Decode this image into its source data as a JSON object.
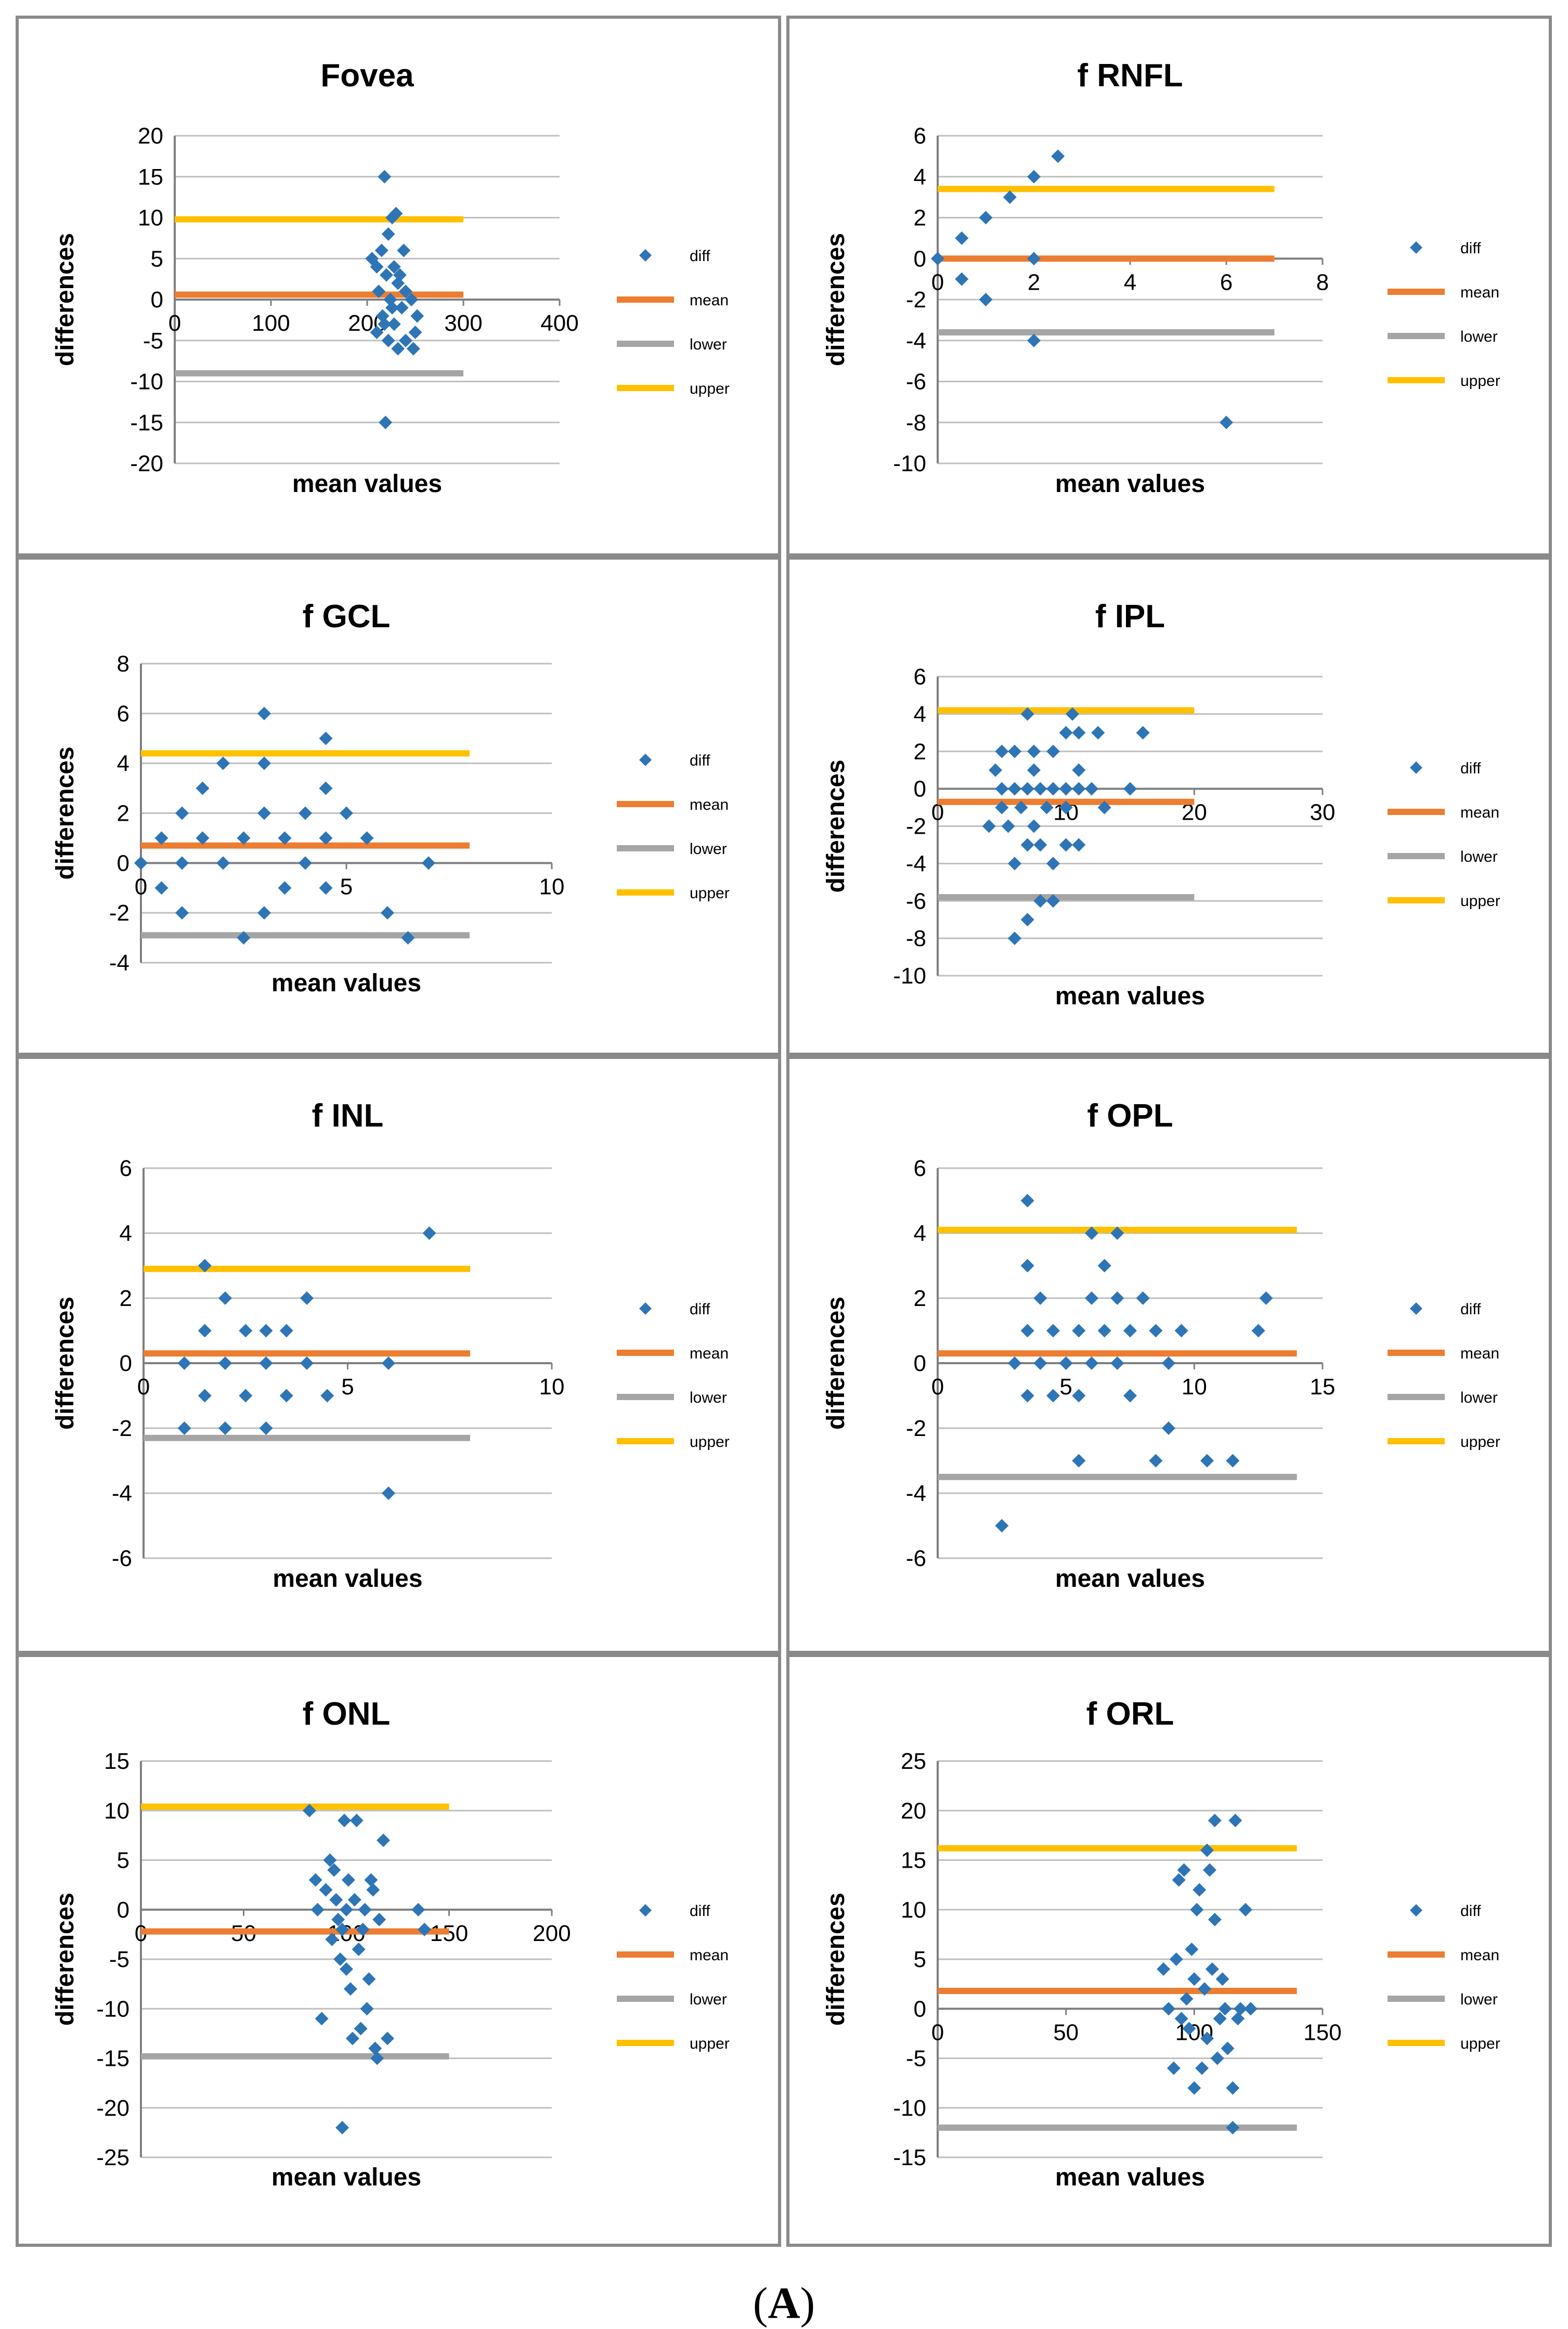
{
  "colors": {
    "diff": "#2E75B6",
    "mean": "#ED7D31",
    "lower": "#A5A5A5",
    "upper": "#FFC000",
    "grid": "#BFBFBF",
    "axis": "#7F7F7F"
  },
  "figure_caption": {
    "open": "(",
    "letter": "A",
    "close": ")"
  },
  "chart_data": [
    {
      "type": "scatter",
      "title": "Fovea",
      "xlabel": "mean values",
      "ylabel": "differences",
      "xlim": [
        0,
        400
      ],
      "ylim": [
        -20,
        20
      ],
      "xticks": [
        "0",
        "100",
        "200",
        "300",
        "400"
      ],
      "yticks": [
        "-20",
        "-15",
        "-10",
        "-5",
        "0",
        "5",
        "10",
        "15",
        "20"
      ],
      "legend": [
        "diff",
        "mean",
        "lower",
        "upper"
      ],
      "lines": {
        "mean": 0.6,
        "lower": -9,
        "upper": 9.8
      },
      "line_x": [
        0,
        300
      ],
      "points": [
        [
          218,
          15
        ],
        [
          230,
          10.5
        ],
        [
          222,
          8
        ],
        [
          226,
          10
        ],
        [
          205,
          5
        ],
        [
          215,
          6
        ],
        [
          238,
          6
        ],
        [
          210,
          4
        ],
        [
          220,
          3
        ],
        [
          228,
          4
        ],
        [
          232,
          2
        ],
        [
          212,
          1
        ],
        [
          224,
          0
        ],
        [
          236,
          -1
        ],
        [
          216,
          -2
        ],
        [
          228,
          -3
        ],
        [
          210,
          -4
        ],
        [
          222,
          -5
        ],
        [
          240,
          -5
        ],
        [
          248,
          -6
        ],
        [
          232,
          -6
        ],
        [
          250,
          -4
        ],
        [
          252,
          -2
        ],
        [
          246,
          0
        ],
        [
          240,
          1
        ],
        [
          226,
          -1
        ],
        [
          234,
          3
        ],
        [
          218,
          -3
        ],
        [
          219,
          -15
        ]
      ]
    },
    {
      "type": "scatter",
      "title": "f RNFL",
      "xlabel": "mean values",
      "ylabel": "differences",
      "xlim": [
        0,
        8
      ],
      "ylim": [
        -10,
        6
      ],
      "xticks": [
        "0",
        "2",
        "4",
        "6",
        "8"
      ],
      "yticks": [
        "-10",
        "-8",
        "-6",
        "-4",
        "-2",
        "0",
        "2",
        "4",
        "6"
      ],
      "legend": [
        "diff",
        "mean",
        "lower",
        "upper"
      ],
      "lines": {
        "mean": 0,
        "lower": -3.6,
        "upper": 3.4
      },
      "line_x": [
        0,
        7
      ],
      "points": [
        [
          0,
          0
        ],
        [
          0.5,
          1
        ],
        [
          0.5,
          -1
        ],
        [
          1,
          2
        ],
        [
          1,
          -2
        ],
        [
          1.5,
          3
        ],
        [
          2,
          4
        ],
        [
          2,
          0
        ],
        [
          2,
          -4
        ],
        [
          2.5,
          5
        ],
        [
          6,
          -8
        ]
      ]
    },
    {
      "type": "scatter",
      "title": "f GCL",
      "xlabel": "mean values",
      "ylabel": "differences",
      "xlim": [
        0,
        10
      ],
      "ylim": [
        -4,
        8
      ],
      "xticks": [
        "0",
        "5",
        "10"
      ],
      "yticks": [
        "-4",
        "-2",
        "0",
        "2",
        "4",
        "6",
        "8"
      ],
      "legend": [
        "diff",
        "mean",
        "lower",
        "upper"
      ],
      "lines": {
        "mean": 0.7,
        "lower": -2.9,
        "upper": 4.4
      },
      "line_x": [
        0,
        8
      ],
      "points": [
        [
          0,
          0
        ],
        [
          0.5,
          1
        ],
        [
          0.5,
          -1
        ],
        [
          1,
          2
        ],
        [
          1,
          0
        ],
        [
          1,
          -2
        ],
        [
          1.5,
          3
        ],
        [
          1.5,
          1
        ],
        [
          2,
          4
        ],
        [
          2,
          0
        ],
        [
          2.5,
          1
        ],
        [
          2.5,
          -3
        ],
        [
          3,
          6
        ],
        [
          3,
          4
        ],
        [
          3,
          2
        ],
        [
          3,
          -2
        ],
        [
          3.5,
          1
        ],
        [
          3.5,
          -1
        ],
        [
          4,
          2
        ],
        [
          4,
          0
        ],
        [
          4.5,
          5
        ],
        [
          4.5,
          3
        ],
        [
          4.5,
          1
        ],
        [
          4.5,
          -1
        ],
        [
          5,
          2
        ],
        [
          5.5,
          1
        ],
        [
          6,
          -2
        ],
        [
          6.5,
          -3
        ],
        [
          7,
          0
        ]
      ]
    },
    {
      "type": "scatter",
      "title": "f IPL",
      "xlabel": "mean values",
      "ylabel": "differences",
      "xlim": [
        0,
        30
      ],
      "ylim": [
        -10,
        6
      ],
      "xticks": [
        "0",
        "10",
        "20",
        "30"
      ],
      "yticks": [
        "-10",
        "-8",
        "-6",
        "-4",
        "-2",
        "0",
        "2",
        "4",
        "6"
      ],
      "legend": [
        "diff",
        "mean",
        "lower",
        "upper"
      ],
      "lines": {
        "mean": -0.7,
        "lower": -5.8,
        "upper": 4.2
      },
      "line_x": [
        0,
        20
      ],
      "points": [
        [
          4,
          -2
        ],
        [
          4.5,
          1
        ],
        [
          5,
          0
        ],
        [
          5,
          -1
        ],
        [
          5,
          2
        ],
        [
          5.5,
          -2
        ],
        [
          6,
          2
        ],
        [
          6,
          0
        ],
        [
          6,
          -4
        ],
        [
          6,
          -8
        ],
        [
          6.5,
          -1
        ],
        [
          7,
          4
        ],
        [
          7,
          0
        ],
        [
          7,
          -3
        ],
        [
          7,
          -7
        ],
        [
          7.5,
          2
        ],
        [
          7.5,
          1
        ],
        [
          7.5,
          -2
        ],
        [
          8,
          0
        ],
        [
          8,
          -3
        ],
        [
          8,
          -6
        ],
        [
          8.5,
          -1
        ],
        [
          9,
          2
        ],
        [
          9,
          0
        ],
        [
          9,
          -4
        ],
        [
          9,
          -6
        ],
        [
          10,
          3
        ],
        [
          10,
          0
        ],
        [
          10,
          -1
        ],
        [
          10,
          -3
        ],
        [
          10.5,
          4
        ],
        [
          11,
          3
        ],
        [
          11,
          1
        ],
        [
          11,
          0
        ],
        [
          11,
          -3
        ],
        [
          12,
          0
        ],
        [
          12.5,
          3
        ],
        [
          13,
          -1
        ],
        [
          15,
          0
        ],
        [
          16,
          3
        ]
      ]
    },
    {
      "type": "scatter",
      "title": "f INL",
      "xlabel": "mean values",
      "ylabel": "differences",
      "xlim": [
        0,
        10
      ],
      "ylim": [
        -6,
        6
      ],
      "xticks": [
        "0",
        "5",
        "10"
      ],
      "yticks": [
        "-6",
        "-4",
        "-2",
        "0",
        "2",
        "4",
        "6"
      ],
      "legend": [
        "diff",
        "mean",
        "lower",
        "upper"
      ],
      "lines": {
        "mean": 0.3,
        "lower": -2.3,
        "upper": 2.9
      },
      "line_x": [
        0,
        8
      ],
      "points": [
        [
          1,
          0
        ],
        [
          1,
          -2
        ],
        [
          1.5,
          3
        ],
        [
          1.5,
          1
        ],
        [
          1.5,
          -1
        ],
        [
          2,
          2
        ],
        [
          2,
          0
        ],
        [
          2,
          -2
        ],
        [
          2.5,
          1
        ],
        [
          2.5,
          -1
        ],
        [
          3,
          1
        ],
        [
          3,
          0
        ],
        [
          3,
          -2
        ],
        [
          3.5,
          1
        ],
        [
          3.5,
          -1
        ],
        [
          4,
          2
        ],
        [
          4,
          0
        ],
        [
          4.5,
          -1
        ],
        [
          6,
          0
        ],
        [
          6,
          -4
        ],
        [
          7,
          4
        ]
      ]
    },
    {
      "type": "scatter",
      "title": "f OPL",
      "xlabel": "mean values",
      "ylabel": "differences",
      "xlim": [
        0,
        15
      ],
      "ylim": [
        -6,
        6
      ],
      "xticks": [
        "0",
        "5",
        "10",
        "15"
      ],
      "yticks": [
        "-6",
        "-4",
        "-2",
        "0",
        "2",
        "4",
        "6"
      ],
      "legend": [
        "diff",
        "mean",
        "lower",
        "upper"
      ],
      "lines": {
        "mean": 0.3,
        "lower": -3.5,
        "upper": 4.1
      },
      "line_x": [
        0,
        14
      ],
      "points": [
        [
          2.5,
          -5
        ],
        [
          3,
          0
        ],
        [
          3.5,
          5
        ],
        [
          3.5,
          3
        ],
        [
          3.5,
          1
        ],
        [
          3.5,
          -1
        ],
        [
          4,
          2
        ],
        [
          4,
          0
        ],
        [
          4.5,
          1
        ],
        [
          4.5,
          -1
        ],
        [
          5,
          0
        ],
        [
          5.5,
          1
        ],
        [
          5.5,
          -1
        ],
        [
          5.5,
          -3
        ],
        [
          6,
          4
        ],
        [
          6,
          2
        ],
        [
          6,
          0
        ],
        [
          6.5,
          3
        ],
        [
          6.5,
          1
        ],
        [
          7,
          4
        ],
        [
          7,
          2
        ],
        [
          7,
          0
        ],
        [
          7.5,
          1
        ],
        [
          7.5,
          -1
        ],
        [
          8,
          2
        ],
        [
          8.5,
          1
        ],
        [
          8.5,
          -3
        ],
        [
          9,
          0
        ],
        [
          9,
          -2
        ],
        [
          9.5,
          1
        ],
        [
          10.5,
          -3
        ],
        [
          11.5,
          -3
        ],
        [
          12.5,
          1
        ],
        [
          12.8,
          2
        ]
      ]
    },
    {
      "type": "scatter",
      "title": "f ONL",
      "xlabel": "mean values",
      "ylabel": "differences",
      "xlim": [
        0,
        200
      ],
      "ylim": [
        -25,
        15
      ],
      "xticks": [
        "0",
        "50",
        "100",
        "150",
        "200"
      ],
      "yticks": [
        "-25",
        "-20",
        "-15",
        "-10",
        "-5",
        "0",
        "5",
        "10",
        "15"
      ],
      "legend": [
        "diff",
        "mean",
        "lower",
        "upper"
      ],
      "lines": {
        "mean": -2.2,
        "lower": -14.8,
        "upper": 10.4
      },
      "line_x": [
        0,
        150
      ],
      "points": [
        [
          82,
          10
        ],
        [
          85,
          3
        ],
        [
          86,
          0
        ],
        [
          88,
          -11
        ],
        [
          90,
          2
        ],
        [
          92,
          5
        ],
        [
          93,
          -3
        ],
        [
          94,
          4
        ],
        [
          95,
          1
        ],
        [
          96,
          -1
        ],
        [
          97,
          -5
        ],
        [
          98,
          -2
        ],
        [
          99,
          9
        ],
        [
          100,
          -6
        ],
        [
          100,
          0
        ],
        [
          101,
          3
        ],
        [
          102,
          -8
        ],
        [
          103,
          -13
        ],
        [
          104,
          1
        ],
        [
          105,
          9
        ],
        [
          106,
          -4
        ],
        [
          107,
          -12
        ],
        [
          108,
          -2
        ],
        [
          109,
          0
        ],
        [
          110,
          -10
        ],
        [
          111,
          -7
        ],
        [
          112,
          3
        ],
        [
          113,
          2
        ],
        [
          114,
          -14
        ],
        [
          115,
          -15
        ],
        [
          116,
          -1
        ],
        [
          118,
          7
        ],
        [
          120,
          -13
        ],
        [
          135,
          0
        ],
        [
          138,
          -2
        ],
        [
          98,
          -22
        ]
      ]
    },
    {
      "type": "scatter",
      "title": "f ORL",
      "xlabel": "mean values",
      "ylabel": "differences",
      "xlim": [
        0,
        150
      ],
      "ylim": [
        -15,
        25
      ],
      "xticks": [
        "0",
        "50",
        "100",
        "150"
      ],
      "yticks": [
        "-15",
        "-10",
        "-5",
        "0",
        "5",
        "10",
        "15",
        "20",
        "25"
      ],
      "legend": [
        "diff",
        "mean",
        "lower",
        "upper"
      ],
      "lines": {
        "mean": 1.8,
        "lower": -12,
        "upper": 16.2
      },
      "line_x": [
        0,
        140
      ],
      "points": [
        [
          88,
          4
        ],
        [
          90,
          0
        ],
        [
          92,
          -6
        ],
        [
          93,
          5
        ],
        [
          94,
          13
        ],
        [
          95,
          -1
        ],
        [
          96,
          14
        ],
        [
          97,
          1
        ],
        [
          98,
          -2
        ],
        [
          99,
          6
        ],
        [
          100,
          -8
        ],
        [
          100,
          3
        ],
        [
          101,
          10
        ],
        [
          102,
          12
        ],
        [
          103,
          -6
        ],
        [
          104,
          2
        ],
        [
          105,
          -3
        ],
        [
          105,
          16
        ],
        [
          106,
          14
        ],
        [
          107,
          4
        ],
        [
          108,
          9
        ],
        [
          108,
          19
        ],
        [
          109,
          -5
        ],
        [
          110,
          -1
        ],
        [
          111,
          3
        ],
        [
          112,
          0
        ],
        [
          113,
          -4
        ],
        [
          115,
          -8
        ],
        [
          115,
          -12
        ],
        [
          116,
          19
        ],
        [
          117,
          -1
        ],
        [
          118,
          0
        ],
        [
          120,
          10
        ],
        [
          122,
          0
        ]
      ]
    }
  ]
}
